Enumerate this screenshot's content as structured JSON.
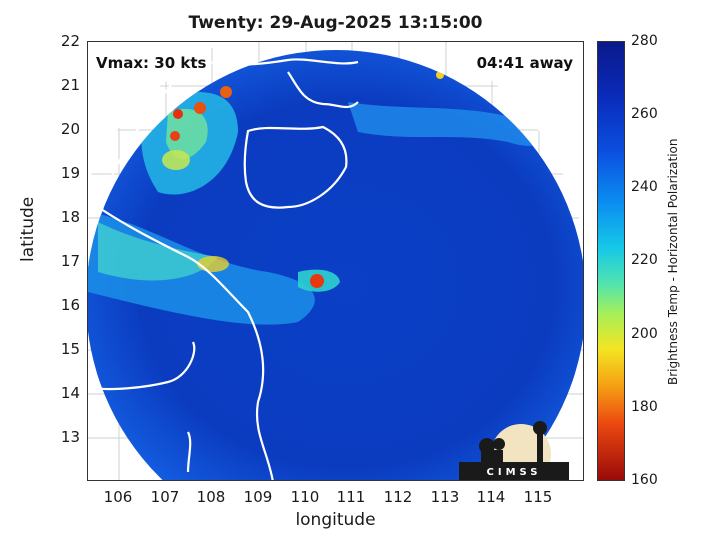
{
  "title": "Twenty: 29-Aug-2025 13:15:00",
  "overlay": {
    "vmax": "Vmax: 30 kts",
    "time_away": "04:41 away"
  },
  "axes": {
    "xlabel": "longitude",
    "ylabel": "latitude",
    "xticks": [
      "106",
      "107",
      "108",
      "109",
      "110",
      "111",
      "112",
      "113",
      "114",
      "115"
    ],
    "yticks": [
      "22",
      "21",
      "20",
      "19",
      "18",
      "17",
      "16",
      "15",
      "14",
      "13"
    ]
  },
  "colorbar": {
    "label": "Brightness Temp - Horizontal Polarization",
    "ticks": [
      "280",
      "260",
      "240",
      "220",
      "200",
      "180",
      "160"
    ]
  },
  "logo": {
    "text": "CIMSS"
  },
  "colors": {
    "background_cold": "#0b3ec8",
    "swath_edge": "#1a5ae0",
    "warm_band": "#22c0e0",
    "hot_core": "#e8a020",
    "coastline": "#ffffff"
  },
  "chart_data": {
    "type": "heatmap",
    "xlim": [
      105.4,
      115.8
    ],
    "ylim": [
      12.1,
      22.0
    ],
    "zlim": [
      160,
      280
    ],
    "colormap": "jet",
    "grid": true
  }
}
